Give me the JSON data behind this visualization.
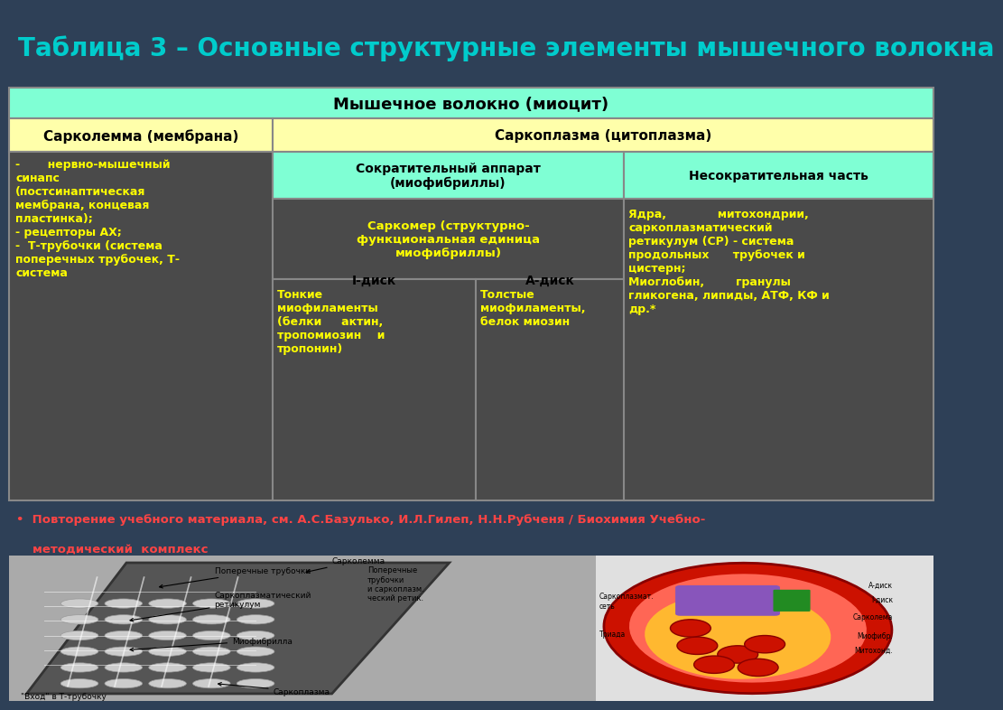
{
  "title": "Таблица 3 – Основные структурные элементы мышечного волокна",
  "title_color": "#00CCCC",
  "bg_color": "#2E4057",
  "title_fontsize": 20,
  "table_header_row1_text": "Мышечное волокно (миоцит)",
  "table_header_row1_bg": "#7FFFD4",
  "table_header_row2_col1": "Сарколемма (мембрана)",
  "table_header_row2_col2": "Саркоплазма (цитоплазма)",
  "table_header_row2_bg": "#FFFFAA",
  "cell_dark_bg": "#4A4A4A",
  "subheader_bg": "#7FFFD4",
  "cell_text_color": "#FFFF00",
  "bullet_text_line1": "•  Повторение учебного материала, см. А.С.Базулько, И.Л.Гилеп, Н.Н.Рубченя / Биохимия Учебно-",
  "bullet_text_line2": "методический  комплекс",
  "bullet_color": "#FF4444",
  "col1_content": "-       нервно-мышечный\nсинапс\n(постсинаптическая\nмембрана, концевая\nпластинка);\n- рецепторы АХ;\n-  Т-трубочки (система\nпоперечных трубочек, Т-\nсистема",
  "col2_subheader": "Сократительный аппарат\n(миофибриллы)",
  "col2_sarcomere": "Саркомер (структурно-\nфункциональная единица\nмиофибриллы)",
  "col2_idisk_header": "I-диск",
  "col2_adisk_header": "А-диск",
  "col2_thin": "Тонкие\nмиофиламенты\n(белки     актин,\nтропомиозин    и\nтропонин)",
  "col2_thick": "Толстые\nмиофиламенты,\nбелок миозин",
  "col3_subheader": "Несократительная часть",
  "col3_content_top": "Ядра,             митохондрии,\nсаркоплазматический\nретикулум (СР) - система\nпродольных      трубочек и\nцистерн;\nМиоглобин,        гранулы\nгликогена, липиды, АТФ, КФ и\nдр.*",
  "edge_color": "#888888",
  "lw": 1.5
}
